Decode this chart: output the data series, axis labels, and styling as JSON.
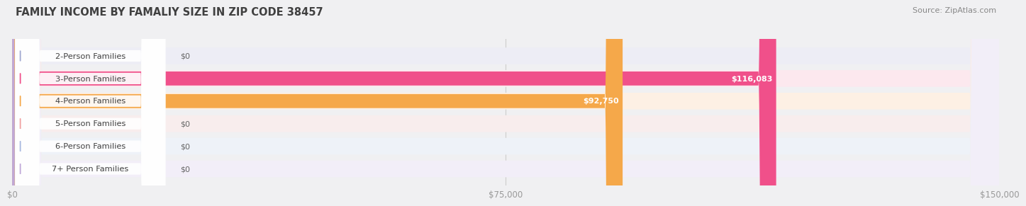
{
  "title": "FAMILY INCOME BY FAMALIY SIZE IN ZIP CODE 38457",
  "source": "Source: ZipAtlas.com",
  "categories": [
    "2-Person Families",
    "3-Person Families",
    "4-Person Families",
    "5-Person Families",
    "6-Person Families",
    "7+ Person Families"
  ],
  "values": [
    0,
    116083,
    92750,
    0,
    0,
    0
  ],
  "bar_colors": [
    "#a0a8d0",
    "#f0508a",
    "#f5a84a",
    "#f0a0a0",
    "#a8b8e0",
    "#c0a8d8"
  ],
  "label_colors": [
    "#666666",
    "#ffffff",
    "#ffffff",
    "#666666",
    "#666666",
    "#666666"
  ],
  "value_labels": [
    "$0",
    "$116,083",
    "$92,750",
    "$0",
    "$0",
    "$0"
  ],
  "xlim": [
    0,
    150000
  ],
  "xticks": [
    0,
    75000,
    150000
  ],
  "xtick_labels": [
    "$0",
    "$75,000",
    "$150,000"
  ],
  "background_color": "#f0f0f2",
  "title_color": "#404040",
  "source_color": "#888888",
  "bar_height": 0.62,
  "row_bg_colors": [
    "#ededf5",
    "#fce8ee",
    "#fdf0e4",
    "#f8eded",
    "#eef2f8",
    "#f2eef8"
  ]
}
